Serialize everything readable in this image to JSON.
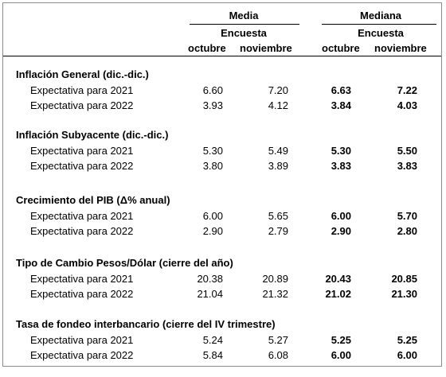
{
  "header": {
    "media": "Media",
    "mediana": "Mediana",
    "encuesta_media": "Encuesta",
    "encuesta_mediana": "Encuesta",
    "media_oct": "octubre",
    "media_nov": "noviembre",
    "mediana_oct": "octubre",
    "mediana_nov": "noviembre"
  },
  "sections": [
    {
      "title": "Inflación General (dic.-dic.)",
      "rows": [
        {
          "label": "Expectativa para 2021",
          "media_oct": "6.60",
          "media_nov": "7.20",
          "mediana_oct": "6.63",
          "mediana_nov": "7.22"
        },
        {
          "label": "Expectativa para 2022",
          "media_oct": "3.93",
          "media_nov": "4.12",
          "mediana_oct": "3.84",
          "mediana_nov": "4.03"
        }
      ]
    },
    {
      "title": "Inflación Subyacente (dic.-dic.)",
      "rows": [
        {
          "label": "Expectativa para 2021",
          "media_oct": "5.30",
          "media_nov": "5.49",
          "mediana_oct": "5.30",
          "mediana_nov": "5.50"
        },
        {
          "label": "Expectativa para 2022",
          "media_oct": "3.80",
          "media_nov": "3.89",
          "mediana_oct": "3.83",
          "mediana_nov": "3.83"
        }
      ]
    },
    {
      "title": "Crecimiento del PIB (Δ% anual)",
      "rows": [
        {
          "label": "Expectativa para 2021",
          "media_oct": "6.00",
          "media_nov": "5.65",
          "mediana_oct": "6.00",
          "mediana_nov": "5.70"
        },
        {
          "label": "Expectativa para 2022",
          "media_oct": "2.90",
          "media_nov": "2.79",
          "mediana_oct": "2.90",
          "mediana_nov": "2.80"
        }
      ]
    },
    {
      "title": "Tipo de Cambio Pesos/Dólar (cierre del año)",
      "rows": [
        {
          "label": "Expectativa para 2021",
          "media_oct": "20.38",
          "media_nov": "20.89",
          "mediana_oct": "20.43",
          "mediana_nov": "20.85"
        },
        {
          "label": "Expectativa para 2022",
          "media_oct": "21.04",
          "media_nov": "21.32",
          "mediana_oct": "21.02",
          "mediana_nov": "21.30"
        }
      ]
    },
    {
      "title": "Tasa de fondeo interbancario (cierre del IV trimestre)",
      "rows": [
        {
          "label": "Expectativa para 2021",
          "media_oct": "5.24",
          "media_nov": "5.27",
          "mediana_oct": "5.25",
          "mediana_nov": "5.25"
        },
        {
          "label": "Expectativa para 2022",
          "media_oct": "5.84",
          "media_nov": "6.08",
          "mediana_oct": "6.00",
          "mediana_nov": "6.00"
        }
      ]
    }
  ]
}
